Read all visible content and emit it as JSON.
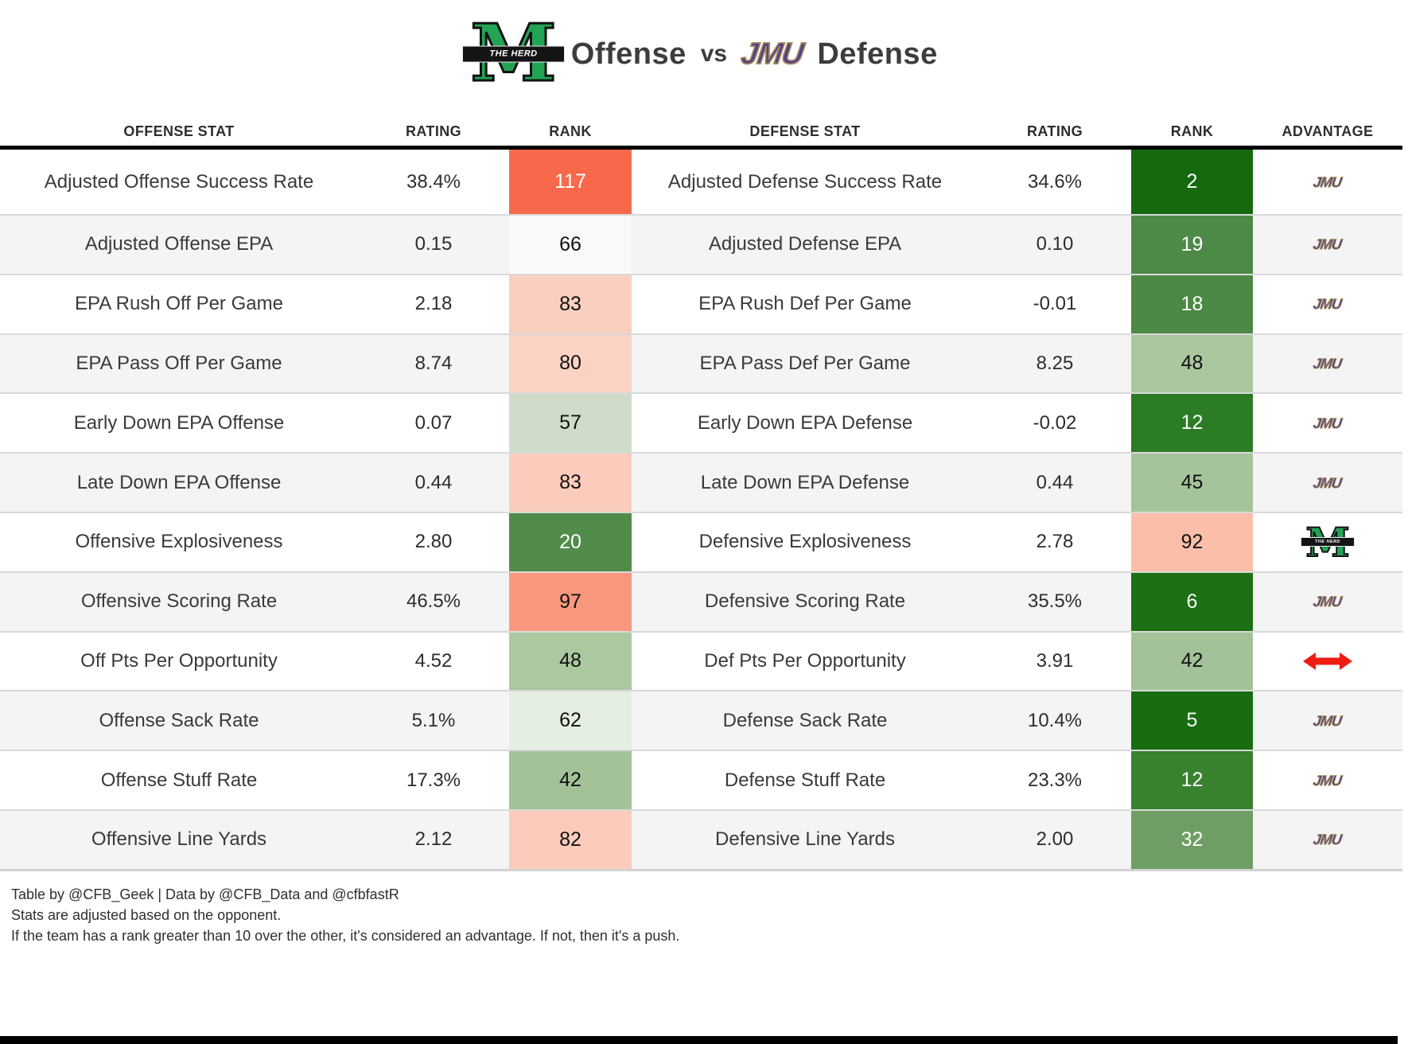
{
  "title": {
    "offense_label": "Offense",
    "vs_label": "vs",
    "defense_label": "Defense"
  },
  "logos": {
    "marshall_letter": "M",
    "marshall_banner_text": "THE HERD",
    "jmu_wordmark": "JMU"
  },
  "colors": {
    "marshall_green": "#23a455",
    "jmu_purple": "#583c8e",
    "jmu_gold": "#a08e55",
    "push_arrow_red": "#ee1c12",
    "rank_best_green": "#15690f",
    "rank_worst_red": "#f8694b",
    "header_rule_black": "#000000",
    "row_stripe_gray": "#f4f4f4"
  },
  "chart_data": {
    "type": "table",
    "title": "Offense vs Defense",
    "columns": [
      "OFFENSE STAT",
      "RATING",
      "RANK",
      "DEFENSE STAT",
      "RATING",
      "RANK",
      "ADVANTAGE"
    ],
    "rows": [
      {
        "offense_stat": "Adjusted Offense Success Rate",
        "offense_rating": "38.4%",
        "offense_rank": "117",
        "offense_rank_bg": "#f8694b",
        "offense_rank_fg": "#ffffff",
        "defense_stat": "Adjusted Defense Success Rate",
        "defense_rating": "34.6%",
        "defense_rank": "2",
        "defense_rank_bg": "#15690f",
        "defense_rank_fg": "#ffffff",
        "advantage": "jmu"
      },
      {
        "offense_stat": "Adjusted Offense EPA",
        "offense_rating": "0.15",
        "offense_rank": "66",
        "offense_rank_bg": "#f7faf6",
        "offense_rank_fg": "#111111",
        "defense_stat": "Adjusted Defense EPA",
        "defense_rating": "0.10",
        "defense_rank": "19",
        "defense_rank_bg": "#4d8a47",
        "defense_rank_fg": "#ffffff",
        "advantage": "jmu"
      },
      {
        "offense_stat": "EPA Rush Off Per Game",
        "offense_rating": "2.18",
        "offense_rank": "83",
        "offense_rank_bg": "#fbcfc0",
        "offense_rank_fg": "#111111",
        "defense_stat": "EPA Rush Def Per Game",
        "defense_rating": "-0.01",
        "defense_rank": "18",
        "defense_rank_bg": "#4b8945",
        "defense_rank_fg": "#ffffff",
        "advantage": "jmu"
      },
      {
        "offense_stat": "EPA Pass Off Per Game",
        "offense_rating": "8.74",
        "offense_rank": "80",
        "offense_rank_bg": "#fbd2c4",
        "offense_rank_fg": "#111111",
        "defense_stat": "EPA Pass Def Per Game",
        "defense_rating": "8.25",
        "defense_rank": "48",
        "defense_rank_bg": "#aac7a0",
        "defense_rank_fg": "#111111",
        "advantage": "jmu"
      },
      {
        "offense_stat": "Early Down EPA Offense",
        "offense_rating": "0.07",
        "offense_rank": "57",
        "offense_rank_bg": "#cedcc9",
        "offense_rank_fg": "#111111",
        "defense_stat": "Early Down EPA Defense",
        "defense_rating": "-0.02",
        "defense_rank": "12",
        "defense_rank_bg": "#2c7c25",
        "defense_rank_fg": "#ffffff",
        "advantage": "jmu"
      },
      {
        "offense_stat": "Late Down EPA Offense",
        "offense_rating": "0.44",
        "offense_rank": "83",
        "offense_rank_bg": "#fbccbc",
        "offense_rank_fg": "#111111",
        "defense_stat": "Late Down EPA Defense",
        "defense_rating": "0.44",
        "defense_rank": "45",
        "defense_rank_bg": "#a6c49c",
        "defense_rank_fg": "#111111",
        "advantage": "jmu"
      },
      {
        "offense_stat": "Offensive Explosiveness",
        "offense_rating": "2.80",
        "offense_rank": "20",
        "offense_rank_bg": "#518c4a",
        "offense_rank_fg": "#ffffff",
        "defense_stat": "Defensive Explosiveness",
        "defense_rating": "2.78",
        "defense_rank": "92",
        "defense_rank_bg": "#fbbfa9",
        "defense_rank_fg": "#111111",
        "advantage": "marshall"
      },
      {
        "offense_stat": "Offensive Scoring Rate",
        "offense_rating": "46.5%",
        "offense_rank": "97",
        "offense_rank_bg": "#f9987c",
        "offense_rank_fg": "#111111",
        "defense_stat": "Defensive Scoring Rate",
        "defense_rating": "35.5%",
        "defense_rank": "6",
        "defense_rank_bg": "#1d7015",
        "defense_rank_fg": "#ffffff",
        "advantage": "jmu"
      },
      {
        "offense_stat": "Off Pts Per Opportunity",
        "offense_rating": "4.52",
        "offense_rank": "48",
        "offense_rank_bg": "#abc8a1",
        "offense_rank_fg": "#111111",
        "defense_stat": "Def Pts Per Opportunity",
        "defense_rating": "3.91",
        "defense_rank": "42",
        "defense_rank_bg": "#a3c299",
        "defense_rank_fg": "#111111",
        "advantage": "push"
      },
      {
        "offense_stat": "Offense Sack Rate",
        "offense_rating": "5.1%",
        "offense_rank": "62",
        "offense_rank_bg": "#e5efe1",
        "offense_rank_fg": "#111111",
        "defense_stat": "Defense Sack Rate",
        "defense_rating": "10.4%",
        "defense_rank": "5",
        "defense_rank_bg": "#186d11",
        "defense_rank_fg": "#ffffff",
        "advantage": "jmu"
      },
      {
        "offense_stat": "Offense Stuff Rate",
        "offense_rating": "17.3%",
        "offense_rank": "42",
        "offense_rank_bg": "#a3c299",
        "offense_rank_fg": "#111111",
        "defense_stat": "Defense Stuff Rate",
        "defense_rating": "23.3%",
        "defense_rank": "12",
        "defense_rank_bg": "#38812f",
        "defense_rank_fg": "#ffffff",
        "advantage": "jmu"
      },
      {
        "offense_stat": "Offensive Line Yards",
        "offense_rating": "2.12",
        "offense_rank": "82",
        "offense_rank_bg": "#fbcbbb",
        "offense_rank_fg": "#111111",
        "defense_stat": "Defensive Line Yards",
        "defense_rating": "2.00",
        "defense_rank": "32",
        "defense_rank_bg": "#6f9e65",
        "defense_rank_fg": "#ffffff",
        "advantage": "jmu"
      }
    ]
  },
  "footer": {
    "line1": "Table by @CFB_Geek | Data by @CFB_Data and @cfbfastR",
    "line2": "Stats are adjusted based on the opponent.",
    "line3": "If the team has a rank greater than 10 over the other, it's considered an advantage. If not, then it's a push."
  }
}
